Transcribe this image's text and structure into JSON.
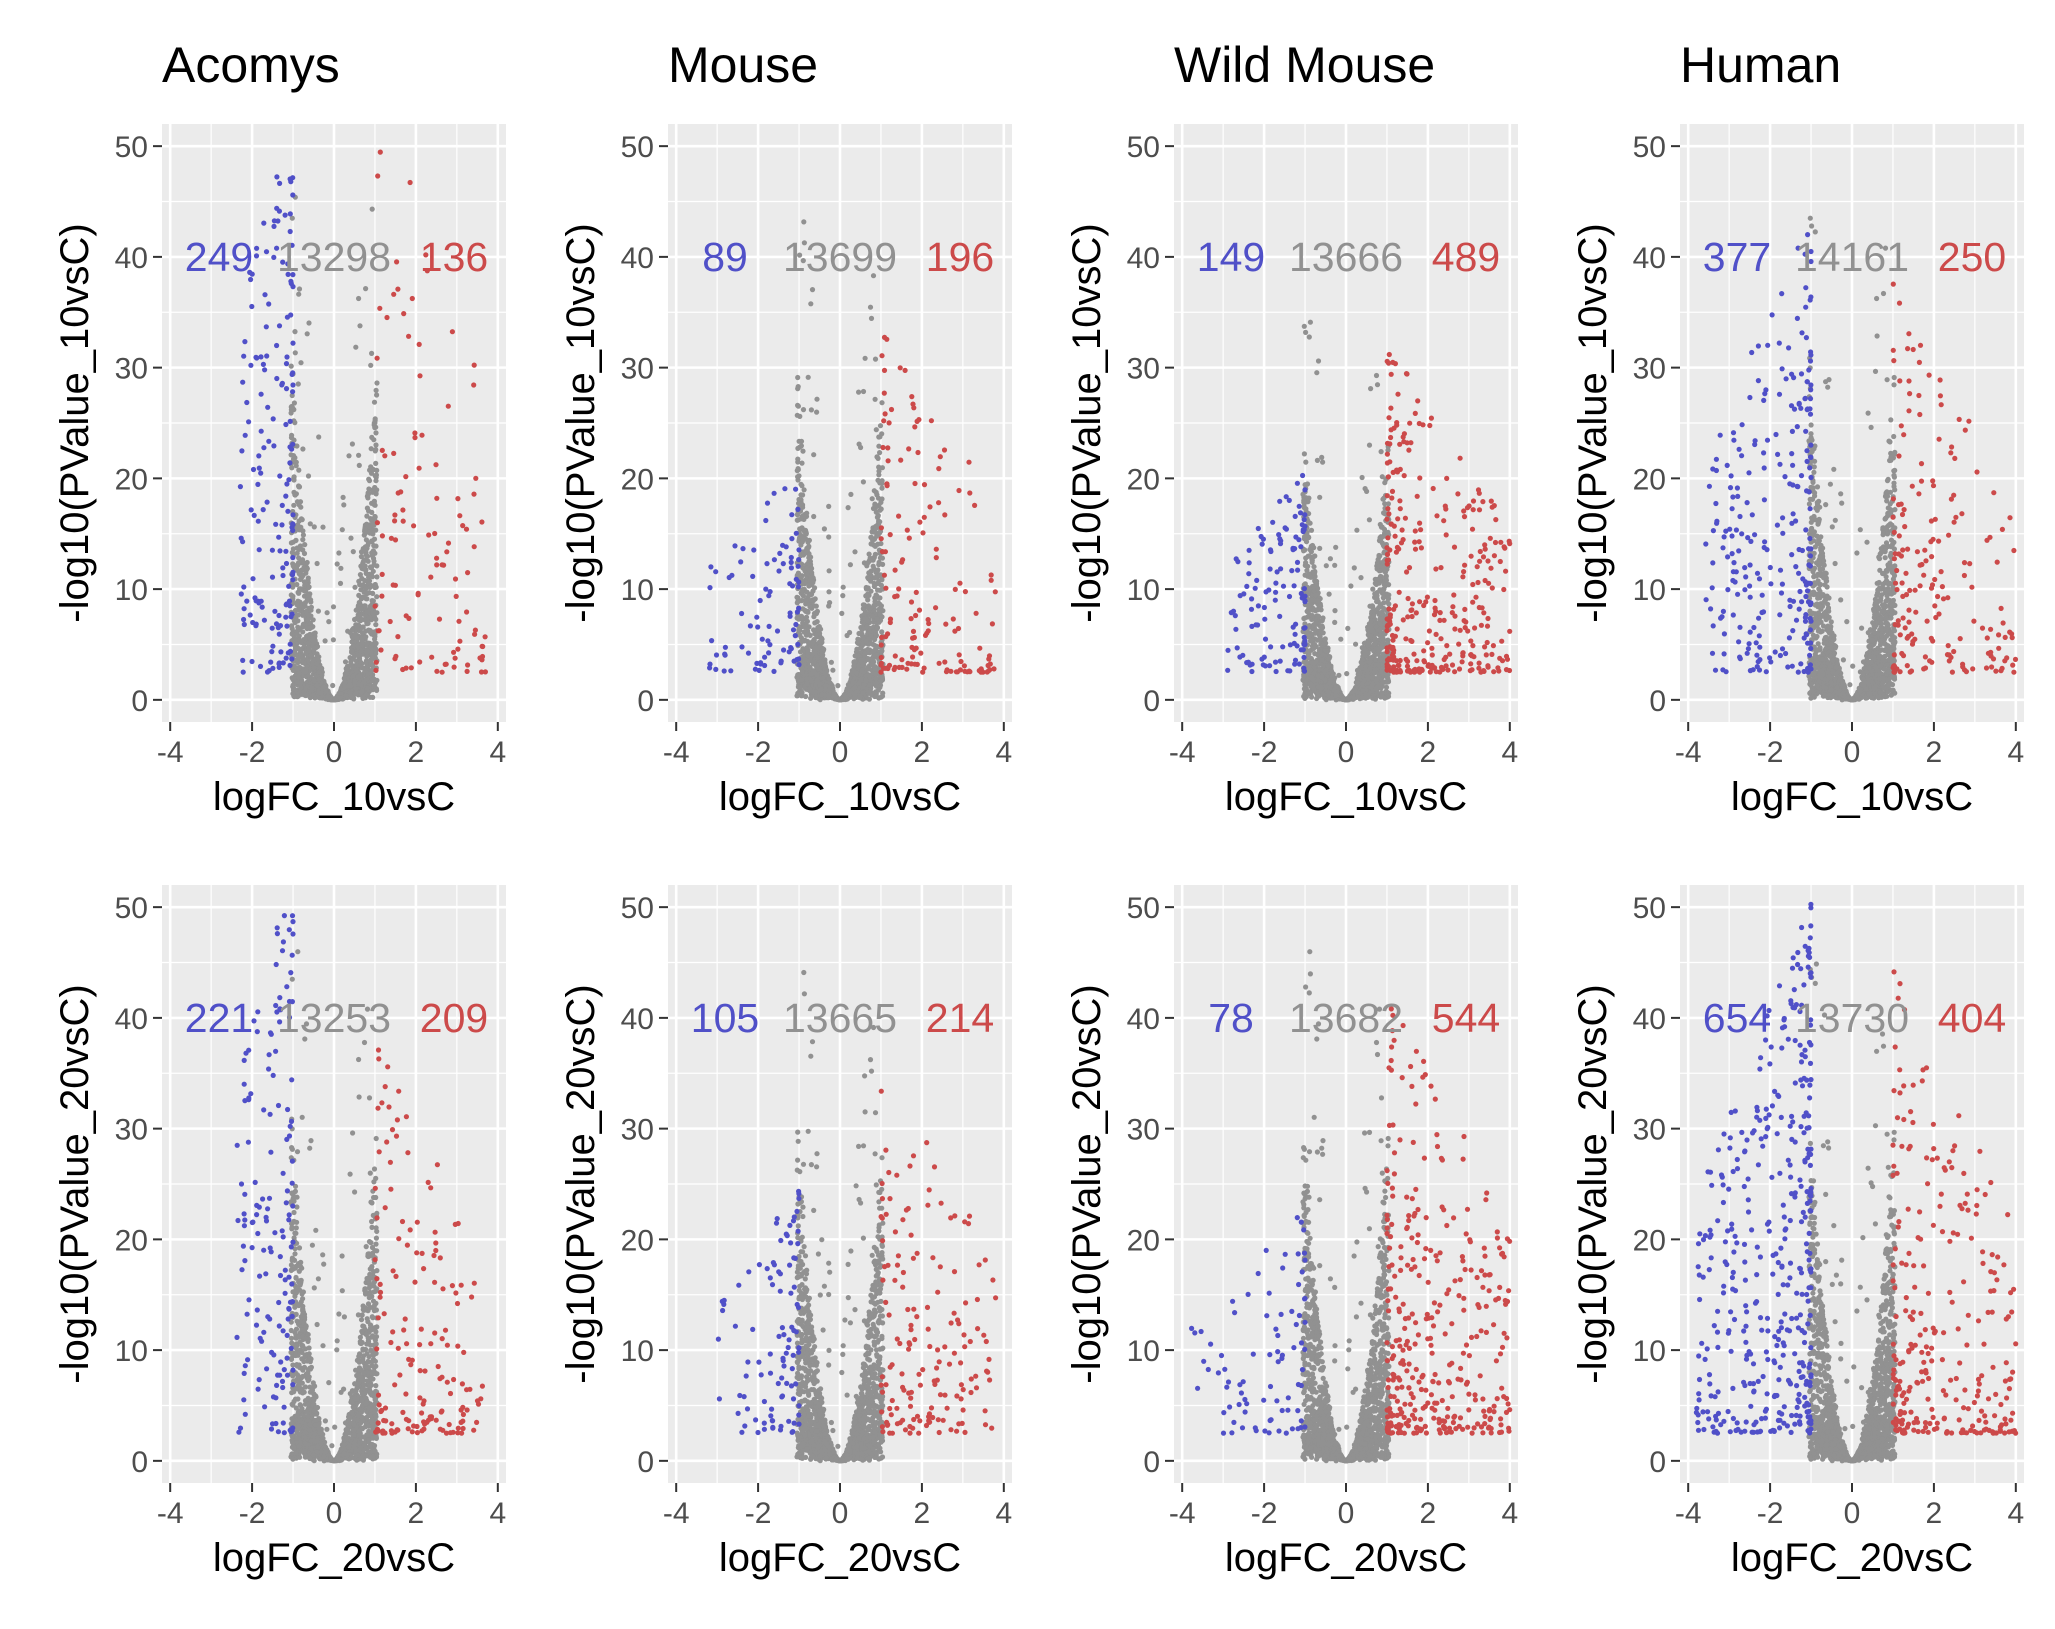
{
  "chart_data": {
    "type": "scatter",
    "layout": "grid 2 rows x 4 columns",
    "columns": [
      "Acomys",
      "Mouse",
      "Wild Mouse",
      "Human"
    ],
    "rows": [
      {
        "xlabel": "logFC_10vsC",
        "ylabel": "-log10(PValue_10vsC)"
      },
      {
        "xlabel": "logFC_20vsC",
        "ylabel": "-log10(PValue_20vsC)"
      }
    ],
    "xlim": [
      -4.2,
      4.2
    ],
    "ylim": [
      -2,
      52
    ],
    "xticks": [
      "-4",
      "-2",
      "0",
      "2",
      "4"
    ],
    "yticks": [
      "0",
      "10",
      "20",
      "30",
      "40",
      "50"
    ],
    "grid": true,
    "colors": {
      "down": "#5050c8",
      "ns": "#919191",
      "up": "#cc4a4a",
      "panel_bg": "#ebebeb",
      "grid": "#ffffff"
    },
    "logfc_threshold": 1,
    "panels": [
      {
        "species": "Acomys",
        "contrast": "10vsC",
        "counts": {
          "down": "249",
          "ns": "13298",
          "up": "136"
        },
        "max_y": 49,
        "down_spread": 0.9,
        "up_spread": 1.1,
        "down_max_abs_logfc": 2.3,
        "up_max_abs_logfc": 3.7
      },
      {
        "species": "Mouse",
        "contrast": "10vsC",
        "counts": {
          "down": "89",
          "ns": "13699",
          "up": "196"
        },
        "max_y": 46,
        "down_spread": 0.35,
        "up_spread": 0.6,
        "down_max_abs_logfc": 3.2,
        "up_max_abs_logfc": 3.8
      },
      {
        "species": "Wild Mouse",
        "contrast": "10vsC",
        "counts": {
          "down": "149",
          "ns": "13666",
          "up": "489"
        },
        "max_y": 38,
        "down_spread": 0.4,
        "up_spread": 0.65,
        "down_max_abs_logfc": 2.9,
        "up_max_abs_logfc": 4.0
      },
      {
        "species": "Human",
        "contrast": "10vsC",
        "counts": {
          "down": "377",
          "ns": "14161",
          "up": "250"
        },
        "max_y": 49,
        "down_spread": 0.7,
        "up_spread": 0.6,
        "down_max_abs_logfc": 3.6,
        "up_max_abs_logfc": 4.0
      },
      {
        "species": "Acomys",
        "contrast": "20vsC",
        "counts": {
          "down": "221",
          "ns": "13253",
          "up": "209"
        },
        "max_y": 49,
        "down_spread": 0.9,
        "up_spread": 0.6,
        "down_max_abs_logfc": 2.4,
        "up_max_abs_logfc": 3.7
      },
      {
        "species": "Mouse",
        "contrast": "20vsC",
        "counts": {
          "down": "105",
          "ns": "13665",
          "up": "214"
        },
        "max_y": 47,
        "down_spread": 0.4,
        "up_spread": 0.6,
        "down_max_abs_logfc": 3.0,
        "up_max_abs_logfc": 3.8
      },
      {
        "species": "Wild Mouse",
        "contrast": "20vsC",
        "counts": {
          "down": "78",
          "ns": "13682",
          "up": "544"
        },
        "max_y": 49,
        "down_spread": 0.35,
        "up_spread": 0.7,
        "down_max_abs_logfc": 3.8,
        "up_max_abs_logfc": 4.0
      },
      {
        "species": "Human",
        "contrast": "20vsC",
        "counts": {
          "down": "654",
          "ns": "13730",
          "up": "404"
        },
        "max_y": 50,
        "down_spread": 0.8,
        "up_spread": 0.7,
        "down_max_abs_logfc": 3.8,
        "up_max_abs_logfc": 4.0
      }
    ]
  }
}
